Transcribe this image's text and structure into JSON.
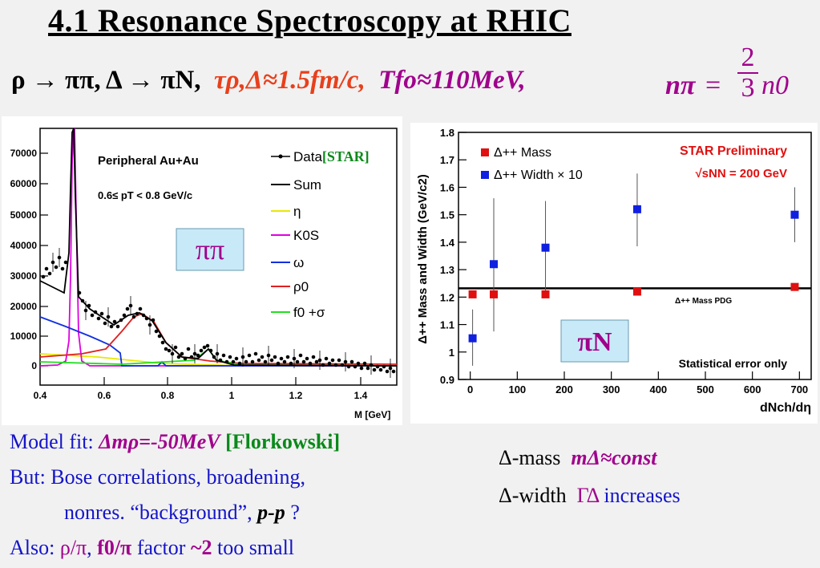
{
  "title": "4.1 Resonance Spectroscopy at RHIC",
  "subtitle": {
    "decays": "ρ → ππ,  Δ → πN,",
    "tau": "τρ,Δ≈1.5fm/c,",
    "tfo": "Tfo≈110MeV,",
    "npi_lhs": "nπ",
    "eq": "=",
    "frac_num": "2",
    "frac_den": "3",
    "npi_rhs": "n0"
  },
  "left_plot": {
    "header": "Peripheral Au+Au",
    "pt_range": "0.6≤ pT < 0.8 GeV/c",
    "xlabel": "M [GeV]",
    "box_label": "ππ",
    "y_ticks": [
      "70000",
      "60000",
      "50000",
      "40000",
      "30000",
      "20000",
      "10000",
      "0"
    ],
    "x_ticks": [
      "0.4",
      "0.6",
      "0.8",
      "1",
      "1.2",
      "1.4"
    ],
    "legend": [
      {
        "label": "Data",
        "tag": "[STAR]",
        "color": "#000000"
      },
      {
        "label": "Sum",
        "color": "#000000"
      },
      {
        "label": "η",
        "color": "#e8e800"
      },
      {
        "label": "K0S",
        "color": "#e000e0"
      },
      {
        "label": "ω",
        "color": "#1030e0"
      },
      {
        "label": "ρ0",
        "color": "#e02020"
      },
      {
        "label": "f0 +σ",
        "color": "#20e020"
      }
    ]
  },
  "chart_data": [
    {
      "type": "scatter",
      "title": "STAR Preliminary",
      "subtitle": "√sNN = 200 GeV",
      "xlabel": "dNch/dη",
      "ylabel": "Δ++ Mass and Width (GeV/c2)",
      "xlim": [
        -25,
        725
      ],
      "ylim": [
        0.9,
        1.8
      ],
      "x_ticks": [
        "0",
        "100",
        "200",
        "300",
        "400",
        "500",
        "600",
        "700"
      ],
      "y_ticks": [
        "0.9",
        "1",
        "1.1",
        "1.2",
        "1.3",
        "1.4",
        "1.5",
        "1.6",
        "1.7",
        "1.8"
      ],
      "reference_line": {
        "y": 1.232,
        "label": "Δ++ Mass PDG"
      },
      "series": [
        {
          "name": "Δ++ Mass",
          "color": "#e01010",
          "x": [
            5,
            50,
            160,
            355,
            690
          ],
          "y": [
            1.21,
            1.21,
            1.21,
            1.22,
            1.237
          ]
        },
        {
          "name": "Δ++ Width × 10",
          "color": "#1020e0",
          "x": [
            5,
            50,
            160,
            355,
            690
          ],
          "y": [
            1.05,
            1.32,
            1.38,
            1.52,
            1.5
          ],
          "err_lo": [
            0.95,
            1.075,
            1.21,
            1.385,
            1.4
          ],
          "err_hi": [
            1.155,
            1.56,
            1.55,
            1.65,
            1.6
          ]
        }
      ],
      "note": "Statistical error only",
      "box_label": "πN"
    }
  ],
  "bottom_left": {
    "line1_a": "Model fit: ",
    "line1_b": "Δmρ=-50MeV",
    "line1_c": " [Florkowski]",
    "line2": "But: Bose correlations, broadening,",
    "line3_a": "nonres. “background”,  ",
    "line3_b": "p-p",
    "line3_c": " ?",
    "line4_a": "Also: ",
    "line4_b": "ρ/π",
    "line4_c": ", ",
    "line4_d": "f0/π",
    "line4_e": " factor ",
    "line4_f": "~2",
    "line4_g": " too small"
  },
  "bottom_right": {
    "mass_a": "Δ-mass",
    "mass_b": "mΔ≈const",
    "width_a": "Δ-width",
    "width_b": "ΓΔ",
    "width_c": " increases"
  }
}
